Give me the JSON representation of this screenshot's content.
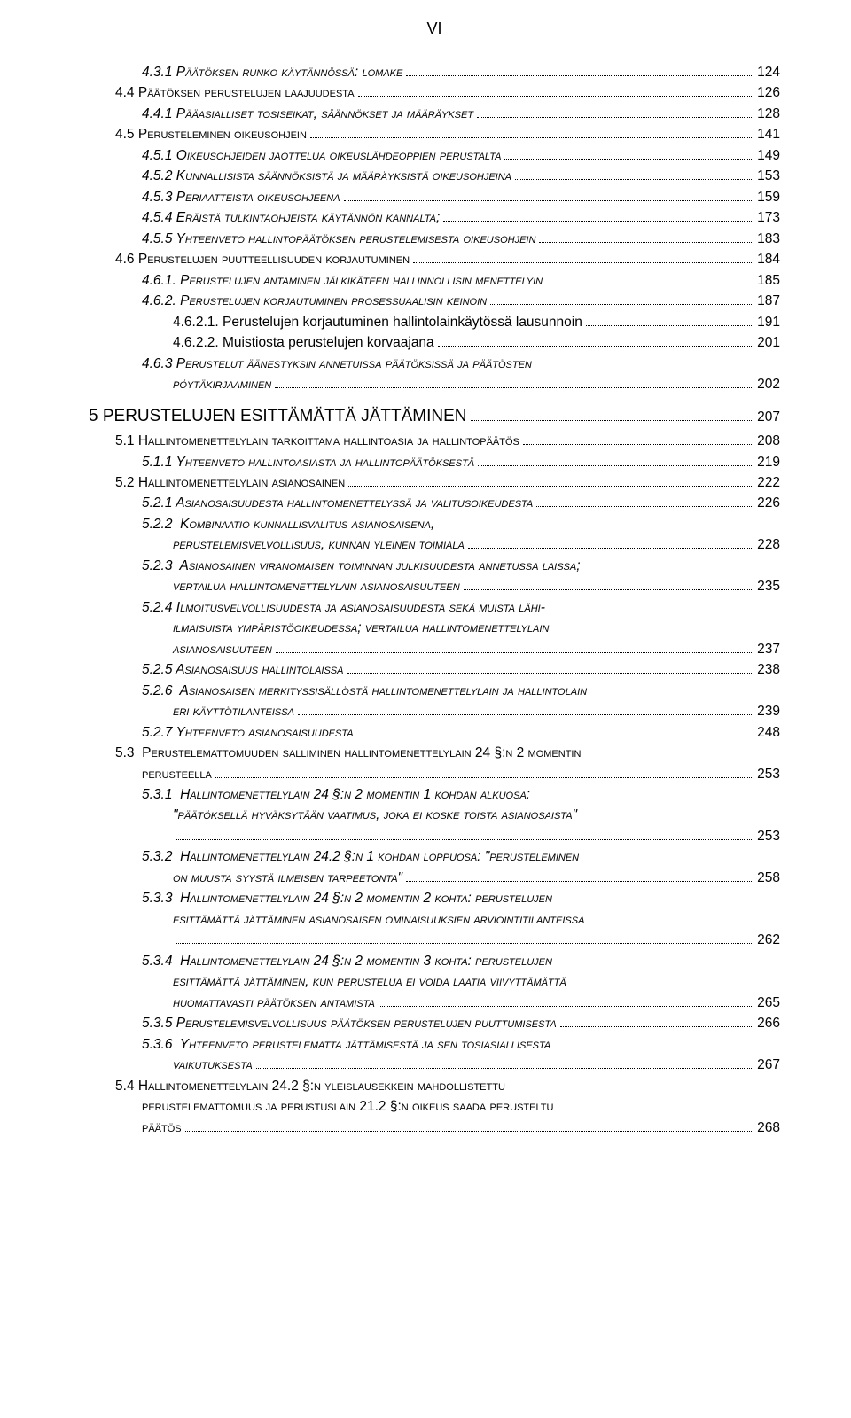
{
  "page_number": "VI",
  "colors": {
    "background": "#ffffff",
    "text": "#000000",
    "leader": "#000000"
  },
  "typography": {
    "font_family": "Arial",
    "body_size_pt": 12,
    "heading_size_pt": 14
  },
  "entries": [
    {
      "indent": 2,
      "style": "sc-it",
      "text": "4.3.1 Päätöksen runko käytännössä: lomake",
      "page": "124"
    },
    {
      "indent": 1,
      "style": "sc",
      "text": "4.4 Päätöksen perustelujen laajuudesta",
      "page": "126"
    },
    {
      "indent": 2,
      "style": "sc-it",
      "text": "4.4.1 Pääasialliset tosiseikat, säännökset ja määräykset",
      "page": "128"
    },
    {
      "indent": 1,
      "style": "sc",
      "text": "4.5 Perusteleminen oikeusohjein",
      "page": "141"
    },
    {
      "indent": 2,
      "style": "sc-it",
      "text": "4.5.1 Oikeusohjeiden jaottelua oikeuslähdeoppien perustalta",
      "page": "149"
    },
    {
      "indent": 2,
      "style": "sc-it",
      "text": "4.5.2 Kunnallisista säännöksistä ja määräyksistä oikeusohjeina",
      "page": "153"
    },
    {
      "indent": 2,
      "style": "sc-it",
      "text": "4.5.3 Periaatteista oikeusohjeena",
      "page": "159"
    },
    {
      "indent": 2,
      "style": "sc-it",
      "text": "4.5.4 Eräistä tulkintaohjeista käytännön kannalta;",
      "page": "173"
    },
    {
      "indent": 2,
      "style": "sc-it",
      "text": "4.5.5 Yhteenveto hallintopäätöksen perustelemisesta oikeusohjein",
      "page": "183"
    },
    {
      "indent": 1,
      "style": "sc",
      "text": "4.6 Perustelujen puutteellisuuden korjautuminen",
      "page": "184"
    },
    {
      "indent": 2,
      "style": "sc-it",
      "text": "4.6.1. Perustelujen antaminen jälkikäteen hallinnollisin menettelyin",
      "page": "185"
    },
    {
      "indent": 2,
      "style": "sc-it",
      "text": "4.6.2. Perustelujen korjautuminen prosessuaalisin keinoin",
      "page": "187"
    },
    {
      "indent": 3,
      "style": "plain",
      "text": "4.6.2.1. Perustelujen korjautuminen hallintolainkäytössä lausunnoin",
      "page": "191"
    },
    {
      "indent": 3,
      "style": "plain",
      "text": "4.6.2.2. Muistiosta perustelujen korvaajana",
      "page": "201"
    },
    {
      "indent": 2,
      "style": "sc-it-multiline",
      "text": "4.6.3 Perustelut äänestyksin annetuissa päätöksissä ja päätösten",
      "cont": "pöytäkirjaaminen",
      "page": "202"
    },
    {
      "indent": 0,
      "style": "h5",
      "text": "5 PERUSTELUJEN ESITTÄMÄTTÄ JÄTTÄMINEN",
      "page": "207"
    },
    {
      "indent": 1,
      "style": "sc",
      "text": "5.1 Hallintomenettelylain tarkoittama hallintoasia ja hallintopäätös",
      "page": "208"
    },
    {
      "indent": 2,
      "style": "sc-it",
      "text": "5.1.1 Yhteenveto hallintoasiasta ja hallintopäätöksestä",
      "page": "219"
    },
    {
      "indent": 1,
      "style": "sc",
      "text": "5.2 Hallintomenettelylain asianosainen",
      "page": "222"
    },
    {
      "indent": 2,
      "style": "sc-it",
      "text": "5.2.1 Asianosaisuudesta hallintomenettelyssä ja valitusoikeudesta",
      "page": "226"
    },
    {
      "indent": 2,
      "style": "sc-it-multiline",
      "text": "5.2.2  Kombinaatio kunnallisvalitus asianosaisena,",
      "cont": "perustelemisvelvollisuus, kunnan yleinen toimiala",
      "page": "228"
    },
    {
      "indent": 2,
      "style": "sc-it-multiline",
      "text": "5.2.3  Asianosainen viranomaisen toiminnan julkisuudesta annetussa laissa;",
      "cont": "vertailua hallintomenettelylain asianosaisuuteen",
      "page": "235"
    },
    {
      "indent": 2,
      "style": "sc-it-multiline3",
      "text": "5.2.4 Ilmoitusvelvollisuudesta ja asianosaisuudesta sekä muista lähi-",
      "cont": "ilmaisuista ympäristöoikeudessa; vertailua hallintomenettelylain",
      "cont2": "asianosaisuuteen",
      "page": "237"
    },
    {
      "indent": 2,
      "style": "sc-it",
      "text": "5.2.5 Asianosaisuus hallintolaissa",
      "page": "238"
    },
    {
      "indent": 2,
      "style": "sc-it-multiline",
      "text": "5.2.6  Asianosaisen merkityssisällöstä hallintomenettelylain ja hallintolain",
      "cont": "eri käyttötilanteissa",
      "page": "239"
    },
    {
      "indent": 2,
      "style": "sc-it",
      "text": "5.2.7 Yhteenveto asianosaisuudesta",
      "page": "248"
    },
    {
      "indent": 1,
      "style": "sc-multiline",
      "text": "5.3  Perustelemattomuuden salliminen hallintomenettelylain 24 §:n 2 momentin",
      "cont": "perusteella",
      "page": "253"
    },
    {
      "indent": 2,
      "style": "sc-it-multiline-dotpre",
      "text": "5.3.1  Hallintomenettelylain 24 §:n 2 momentin 1 kohdan alkuosa:",
      "cont": "\"päätöksellä hyväksytään vaatimus, joka ei koske toista asianosaista\"",
      "page": "253"
    },
    {
      "indent": 2,
      "style": "sc-it-multiline",
      "text": "5.3.2  Hallintomenettelylain 24.2 §:n 1 kohdan loppuosa: \"perusteleminen",
      "cont": "on muusta syystä ilmeisen tarpeetonta\"",
      "page": "258"
    },
    {
      "indent": 2,
      "style": "sc-it-multiline-dotpre",
      "text": "5.3.3  Hallintomenettelylain 24 §:n 2 momentin 2 kohta: perustelujen",
      "cont": "esittämättä jättäminen asianosaisen ominaisuuksien arviointitilanteissa",
      "page": "262"
    },
    {
      "indent": 2,
      "style": "sc-it-multiline3",
      "text": "5.3.4  Hallintomenettelylain 24 §:n 2 momentin 3 kohta: perustelujen",
      "cont": "esittämättä jättäminen, kun perustelua ei voida laatia viivyttämättä",
      "cont2": "huomattavasti päätöksen antamista",
      "page": "265"
    },
    {
      "indent": 2,
      "style": "sc-it",
      "text": "5.3.5 Perustelemisvelvollisuus päätöksen perustelujen puuttumisesta",
      "page": "266"
    },
    {
      "indent": 2,
      "style": "sc-it-multiline",
      "text": "5.3.6  Yhteenveto perustelematta jättämisestä ja sen tosiasiallisesta",
      "cont": "vaikutuksesta",
      "page": "267"
    },
    {
      "indent": 1,
      "style": "sc-multiline3",
      "text": "5.4 Hallintomenettelylain 24.2 §:n yleislausekkein mahdollistettu",
      "cont": "perustelemattomuus ja perustuslain 21.2 §:n oikeus saada perusteltu",
      "cont2": "päätös",
      "page": "268"
    }
  ]
}
